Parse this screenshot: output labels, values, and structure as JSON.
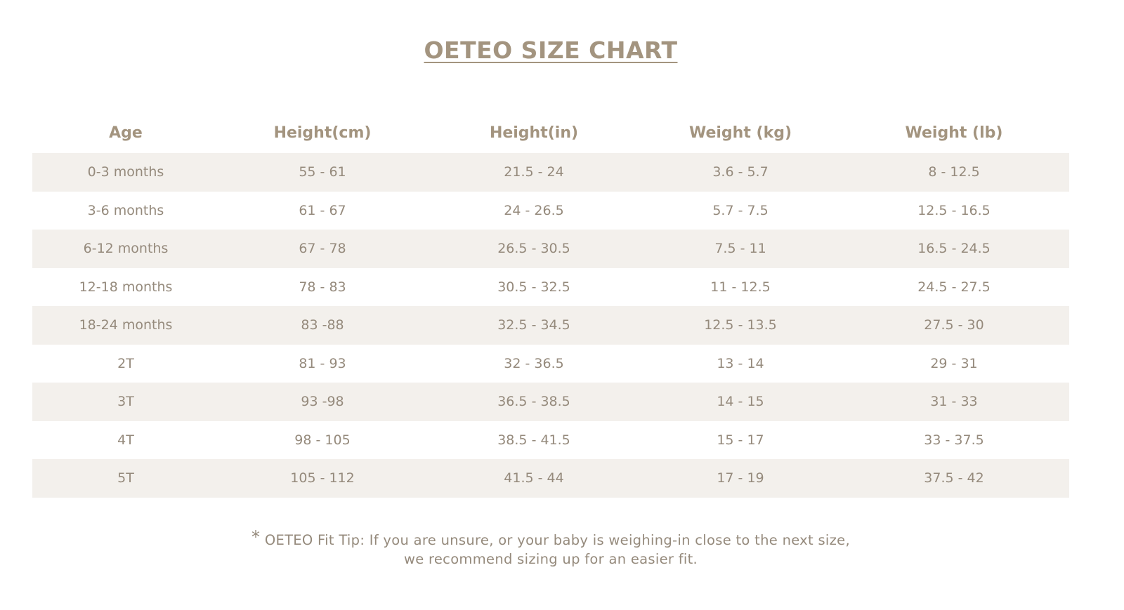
{
  "title": "OETEO SIZE CHART",
  "table": {
    "headers": [
      "Age",
      "Height(cm)",
      "Height(in)",
      "Weight (kg)",
      "Weight (lb)"
    ],
    "rows": [
      [
        "0-3 months",
        "55 - 61",
        "21.5 - 24",
        "3.6 - 5.7",
        "8 - 12.5"
      ],
      [
        "3-6 months",
        "61 - 67",
        "24 - 26.5",
        "5.7 - 7.5",
        "12.5 - 16.5"
      ],
      [
        "6-12 months",
        "67 - 78",
        "26.5 - 30.5",
        "7.5 - 11",
        "16.5 - 24.5"
      ],
      [
        "12-18 months",
        "78 - 83",
        "30.5 - 32.5",
        "11 - 12.5",
        "24.5 - 27.5"
      ],
      [
        "18-24 months",
        "83 -88",
        "32.5 - 34.5",
        "12.5 - 13.5",
        "27.5 - 30"
      ],
      [
        "2T",
        "81 - 93",
        "32 - 36.5",
        "13 - 14",
        "29 - 31"
      ],
      [
        "3T",
        "93 -98",
        "36.5 - 38.5",
        "14 - 15",
        "31 - 33"
      ],
      [
        "4T",
        "98 - 105",
        "38.5 - 41.5",
        "15 - 17",
        "33 - 37.5"
      ],
      [
        "5T",
        "105 - 112",
        "41.5 - 44",
        "17 - 19",
        "37.5 - 42"
      ]
    ]
  },
  "footnote": {
    "star": "*",
    "line1": "OETEO Fit Tip:  If you are unsure, or your baby is weighing-in close to the next size,",
    "line2": "we recommend sizing up for an easier fit."
  },
  "colors": {
    "text": "#958a7c",
    "heading": "#a3947f",
    "row_shade": "#f3f0ec"
  }
}
